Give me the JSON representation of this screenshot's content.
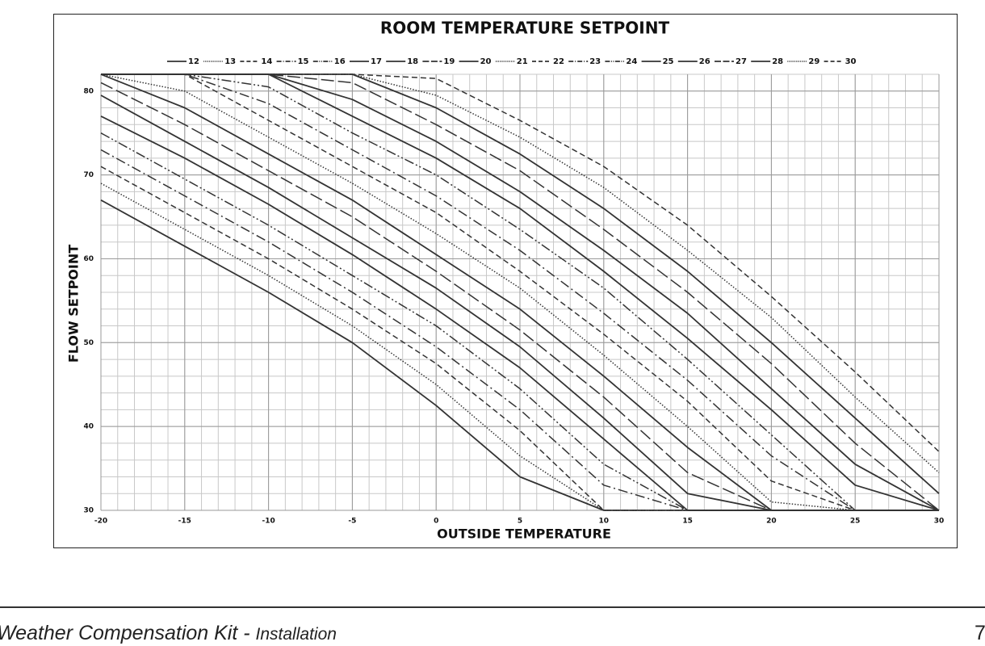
{
  "chart_data": {
    "type": "line",
    "title": "ROOM TEMPERATURE SETPOINT",
    "x_label": "OUTSIDE TEMPERATURE",
    "y_label": "FLOW SETPOINT",
    "x": [
      -20,
      -15,
      -10,
      -5,
      0,
      5,
      10,
      15,
      20,
      25,
      30
    ],
    "xlim": [
      -20,
      30
    ],
    "xticks": [
      -20,
      -15,
      -10,
      -5,
      0,
      5,
      10,
      15,
      20,
      25,
      30
    ],
    "ylim": [
      30,
      82
    ],
    "yticks": [
      30,
      40,
      50,
      60,
      70,
      80
    ],
    "grid": true,
    "minor_step": {
      "x": 1,
      "y": 2
    },
    "legend": "top",
    "series": [
      {
        "name": "12",
        "color": "#333333",
        "dash": "solid",
        "values": [
          67,
          61.5,
          56,
          50,
          42.5,
          34,
          30,
          30,
          30,
          30,
          30
        ]
      },
      {
        "name": "13",
        "color": "#333333",
        "dash": "dotted",
        "values": [
          69,
          63.5,
          58,
          52,
          45,
          36.5,
          30,
          30,
          30,
          30,
          30
        ]
      },
      {
        "name": "14",
        "color": "#333333",
        "dash": "dashed",
        "values": [
          71,
          65.5,
          60,
          54,
          47.5,
          39.5,
          30,
          30,
          30,
          30,
          30
        ]
      },
      {
        "name": "15",
        "color": "#333333",
        "dash": "dashdot",
        "values": [
          73,
          67.5,
          62,
          56,
          49.5,
          42,
          33,
          30,
          30,
          30,
          30
        ]
      },
      {
        "name": "16",
        "color": "#333333",
        "dash": "dashdotdot",
        "values": [
          75,
          69.5,
          64,
          58,
          52,
          44.5,
          35.5,
          30,
          30,
          30,
          30
        ]
      },
      {
        "name": "17",
        "color": "#333333",
        "dash": "solid",
        "values": [
          77,
          72,
          66.5,
          60.5,
          54,
          47,
          38.5,
          30,
          30,
          30,
          30
        ]
      },
      {
        "name": "18",
        "color": "#333333",
        "dash": "solid",
        "values": [
          79.5,
          74,
          68.5,
          62.5,
          56.5,
          49.5,
          41,
          32,
          30,
          30,
          30
        ]
      },
      {
        "name": "19",
        "color": "#333333",
        "dash": "longdash",
        "values": [
          81,
          76,
          70.5,
          65,
          58.5,
          51.5,
          43.5,
          34.5,
          30,
          30,
          30
        ]
      },
      {
        "name": "20",
        "color": "#333333",
        "dash": "solid",
        "values": [
          82,
          78,
          72.5,
          67,
          60.5,
          54,
          46,
          37.5,
          30,
          30,
          30
        ]
      },
      {
        "name": "21",
        "color": "#333333",
        "dash": "dotted",
        "values": [
          82,
          80,
          74.5,
          69,
          63,
          56.5,
          48.5,
          40,
          31,
          30,
          30
        ]
      },
      {
        "name": "22",
        "color": "#333333",
        "dash": "dashed",
        "values": [
          82,
          82,
          76.5,
          71,
          65.5,
          58.5,
          51,
          43,
          33.5,
          30,
          30
        ]
      },
      {
        "name": "23",
        "color": "#333333",
        "dash": "dashdot",
        "values": [
          82,
          82,
          78.5,
          73,
          67.5,
          61,
          53.5,
          45.5,
          36.5,
          30,
          30
        ]
      },
      {
        "name": "24",
        "color": "#333333",
        "dash": "dashdotdot",
        "values": [
          82,
          82,
          80.5,
          75,
          70,
          63.5,
          56.5,
          48,
          39,
          30,
          30
        ]
      },
      {
        "name": "25",
        "color": "#333333",
        "dash": "solid",
        "values": [
          82,
          82,
          82,
          77,
          72,
          66,
          58.5,
          50.5,
          42,
          33,
          30
        ]
      },
      {
        "name": "26",
        "color": "#333333",
        "dash": "solid",
        "values": [
          82,
          82,
          82,
          79,
          74,
          68,
          61,
          53.5,
          44.5,
          35.5,
          30
        ]
      },
      {
        "name": "27",
        "color": "#333333",
        "dash": "longdash",
        "values": [
          82,
          82,
          82,
          81,
          76,
          70.5,
          63.5,
          56,
          47.5,
          38,
          30
        ]
      },
      {
        "name": "28",
        "color": "#333333",
        "dash": "solid",
        "values": [
          82,
          82,
          82,
          82,
          78,
          72.5,
          66,
          58.5,
          50,
          41,
          32
        ]
      },
      {
        "name": "29",
        "color": "#333333",
        "dash": "dotted",
        "values": [
          82,
          82,
          82,
          82,
          79.5,
          74.5,
          68.5,
          61,
          53,
          43.5,
          34.5
        ]
      },
      {
        "name": "30",
        "color": "#333333",
        "dash": "dashed",
        "values": [
          82,
          82,
          82,
          82,
          81.5,
          76.5,
          71,
          64,
          55.5,
          46.5,
          37
        ]
      }
    ]
  },
  "footer": {
    "title": "Weather Compensation Kit -",
    "subtitle": "Installation",
    "page": "7"
  }
}
